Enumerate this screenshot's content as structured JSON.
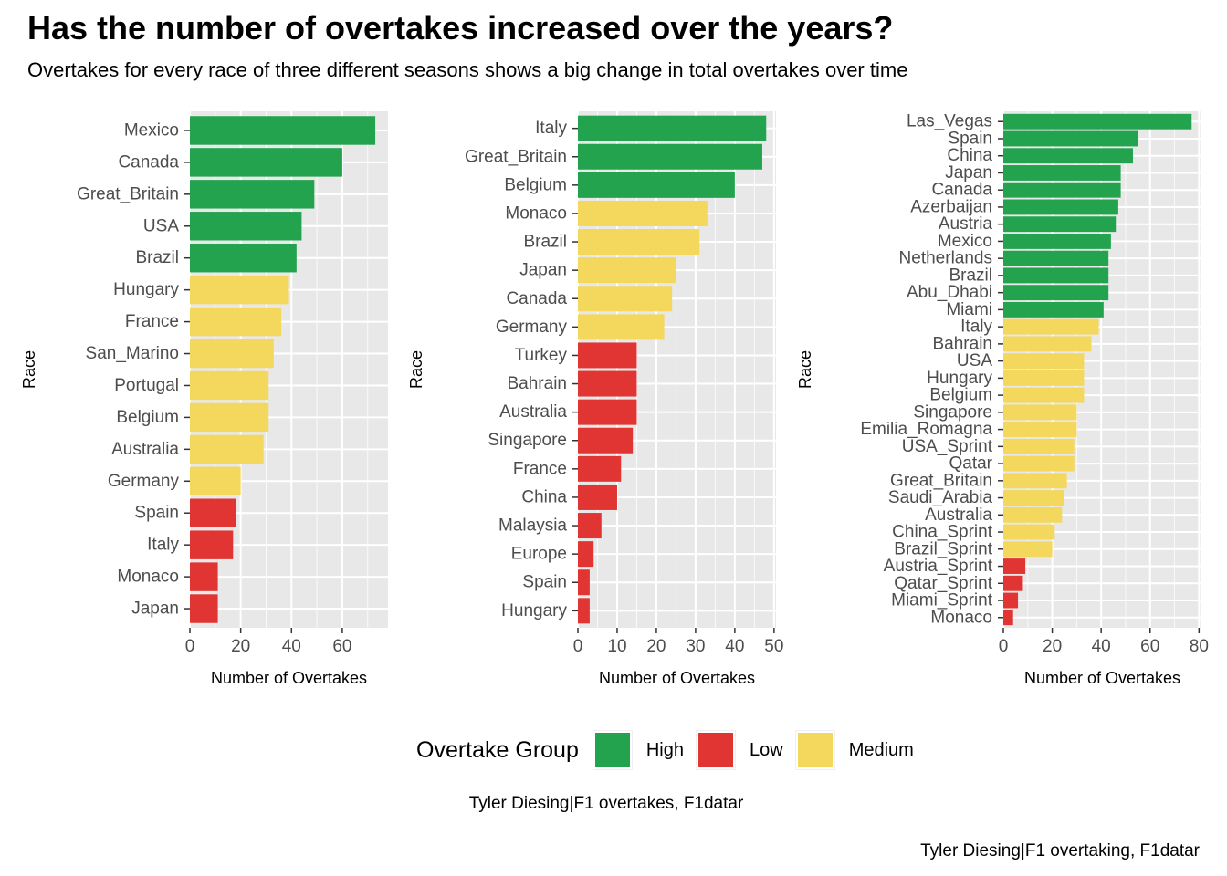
{
  "title": "Has the number of overtakes increased over the years?",
  "subtitle": "Overtakes for every race of three different seasons shows a big change in total overtakes over time",
  "colors": {
    "High": "#24a34f",
    "Low": "#e03532",
    "Medium": "#f4d75d",
    "panel": "#e8e8e8",
    "grid": "#ffffff"
  },
  "legend": {
    "title": "Overtake Group",
    "items": [
      {
        "label": "High",
        "color": "#24a34f"
      },
      {
        "label": "Low",
        "color": "#e03532"
      },
      {
        "label": "Medium",
        "color": "#f4d75d"
      }
    ]
  },
  "caption_center": "Tyler Diesing|F1 overtakes, F1datar",
  "caption_right": "Tyler Diesing|F1 overtaking, F1datar",
  "chart_data": [
    {
      "type": "bar",
      "orientation": "horizontal",
      "xlabel": "Number of Overtakes",
      "ylabel": "Race",
      "xlim": [
        0,
        78
      ],
      "xticks": [
        0,
        20,
        40,
        60
      ],
      "grid": true,
      "categories": [
        "Mexico",
        "Canada",
        "Great_Britain",
        "USA",
        "Brazil",
        "Hungary",
        "France",
        "San_Marino",
        "Portugal",
        "Belgium",
        "Australia",
        "Germany",
        "Spain",
        "Italy",
        "Monaco",
        "Japan"
      ],
      "values": [
        73,
        60,
        49,
        44,
        42,
        39,
        36,
        33,
        31,
        31,
        29,
        20,
        18,
        17,
        11,
        11
      ],
      "groups": [
        "High",
        "High",
        "High",
        "High",
        "High",
        "Medium",
        "Medium",
        "Medium",
        "Medium",
        "Medium",
        "Medium",
        "Medium",
        "Low",
        "Low",
        "Low",
        "Low"
      ]
    },
    {
      "type": "bar",
      "orientation": "horizontal",
      "xlabel": "Number of Overtakes",
      "ylabel": "Race",
      "xlim": [
        0,
        50.5
      ],
      "xticks": [
        0,
        10,
        20,
        30,
        40,
        50
      ],
      "grid": true,
      "categories": [
        "Italy",
        "Great_Britain",
        "Belgium",
        "Monaco",
        "Brazil",
        "Japan",
        "Canada",
        "Germany",
        "Turkey",
        "Bahrain",
        "Australia",
        "Singapore",
        "France",
        "China",
        "Malaysia",
        "Europe",
        "Spain",
        "Hungary"
      ],
      "values": [
        48,
        47,
        40,
        33,
        31,
        25,
        24,
        22,
        15,
        15,
        15,
        14,
        11,
        10,
        6,
        4,
        3,
        3
      ],
      "groups": [
        "High",
        "High",
        "High",
        "Medium",
        "Medium",
        "Medium",
        "Medium",
        "Medium",
        "Low",
        "Low",
        "Low",
        "Low",
        "Low",
        "Low",
        "Low",
        "Low",
        "Low",
        "Low"
      ]
    },
    {
      "type": "bar",
      "orientation": "horizontal",
      "xlabel": "Number of Overtakes",
      "ylabel": "Race",
      "xlim": [
        0,
        81
      ],
      "xticks": [
        0,
        20,
        40,
        60,
        80
      ],
      "grid": true,
      "categories": [
        "Las_Vegas",
        "Spain",
        "China",
        "Japan",
        "Canada",
        "Azerbaijan",
        "Austria",
        "Mexico",
        "Netherlands",
        "Brazil",
        "Abu_Dhabi",
        "Miami",
        "Italy",
        "Bahrain",
        "USA",
        "Hungary",
        "Belgium",
        "Singapore",
        "Emilia_Romagna",
        "USA_Sprint",
        "Qatar",
        "Great_Britain",
        "Saudi_Arabia",
        "Australia",
        "China_Sprint",
        "Brazil_Sprint",
        "Austria_Sprint",
        "Qatar_Sprint",
        "Miami_Sprint",
        "Monaco"
      ],
      "values": [
        77,
        55,
        53,
        48,
        48,
        47,
        46,
        44,
        43,
        43,
        43,
        41,
        39,
        36,
        33,
        33,
        33,
        30,
        30,
        29,
        29,
        26,
        25,
        24,
        21,
        20,
        9,
        8,
        6,
        4
      ],
      "groups": [
        "High",
        "High",
        "High",
        "High",
        "High",
        "High",
        "High",
        "High",
        "High",
        "High",
        "High",
        "High",
        "Medium",
        "Medium",
        "Medium",
        "Medium",
        "Medium",
        "Medium",
        "Medium",
        "Medium",
        "Medium",
        "Medium",
        "Medium",
        "Medium",
        "Medium",
        "Medium",
        "Low",
        "Low",
        "Low",
        "Low"
      ]
    }
  ]
}
